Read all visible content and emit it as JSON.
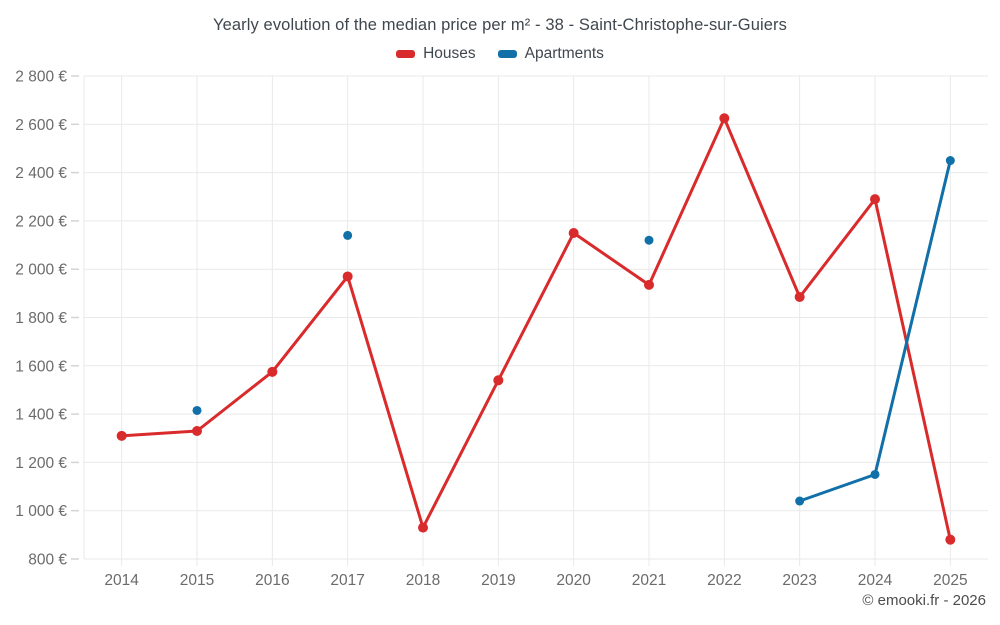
{
  "title": "Yearly evolution of the median price per m² - 38 - Saint-Christophe-sur-Guiers",
  "legend": {
    "items": [
      {
        "label": "Houses",
        "color": "#d92b2b"
      },
      {
        "label": "Apartments",
        "color": "#1170a8"
      }
    ]
  },
  "footer": {
    "attribution": "© emooki.fr - 2026"
  },
  "colors": {
    "houses": "#d92b2b",
    "apartments": "#1170a8",
    "grid": "#e9e9e9",
    "tick": "#d4d4d4",
    "axis_label": "#6b6b6b"
  },
  "chart_data": {
    "type": "line",
    "title": "Yearly evolution of the median price per m² - 38 - Saint-Christophe-sur-Guiers",
    "categories": [
      "2014",
      "2015",
      "2016",
      "2017",
      "2018",
      "2019",
      "2020",
      "2021",
      "2022",
      "2023",
      "2024",
      "2025"
    ],
    "series": [
      {
        "name": "Houses",
        "color": "#d92b2b",
        "point_radius": 5,
        "values": [
          1310,
          1330,
          1575,
          1970,
          930,
          1540,
          2150,
          1935,
          2625,
          1885,
          2290,
          880
        ]
      },
      {
        "name": "Apartments",
        "color": "#1170a8",
        "point_radius": 4.5,
        "values": [
          null,
          1415,
          null,
          2140,
          null,
          null,
          null,
          2120,
          null,
          1040,
          1150,
          2450
        ]
      }
    ],
    "ylim": [
      800,
      2800
    ],
    "ytick_step": 200,
    "yticks": [
      {
        "value": 800,
        "label": "800 €"
      },
      {
        "value": 1000,
        "label": "1 000 €"
      },
      {
        "value": 1200,
        "label": "1 200 €"
      },
      {
        "value": 1400,
        "label": "1 400 €"
      },
      {
        "value": 1600,
        "label": "1 600 €"
      },
      {
        "value": 1800,
        "label": "1 800 €"
      },
      {
        "value": 2000,
        "label": "2 000 €"
      },
      {
        "value": 2200,
        "label": "2 200 €"
      },
      {
        "value": 2400,
        "label": "2 400 €"
      },
      {
        "value": 2600,
        "label": "2 600 €"
      },
      {
        "value": 2800,
        "label": "2 800 €"
      }
    ],
    "grid": true,
    "legend_position": "top",
    "xlabel": "",
    "ylabel": ""
  }
}
